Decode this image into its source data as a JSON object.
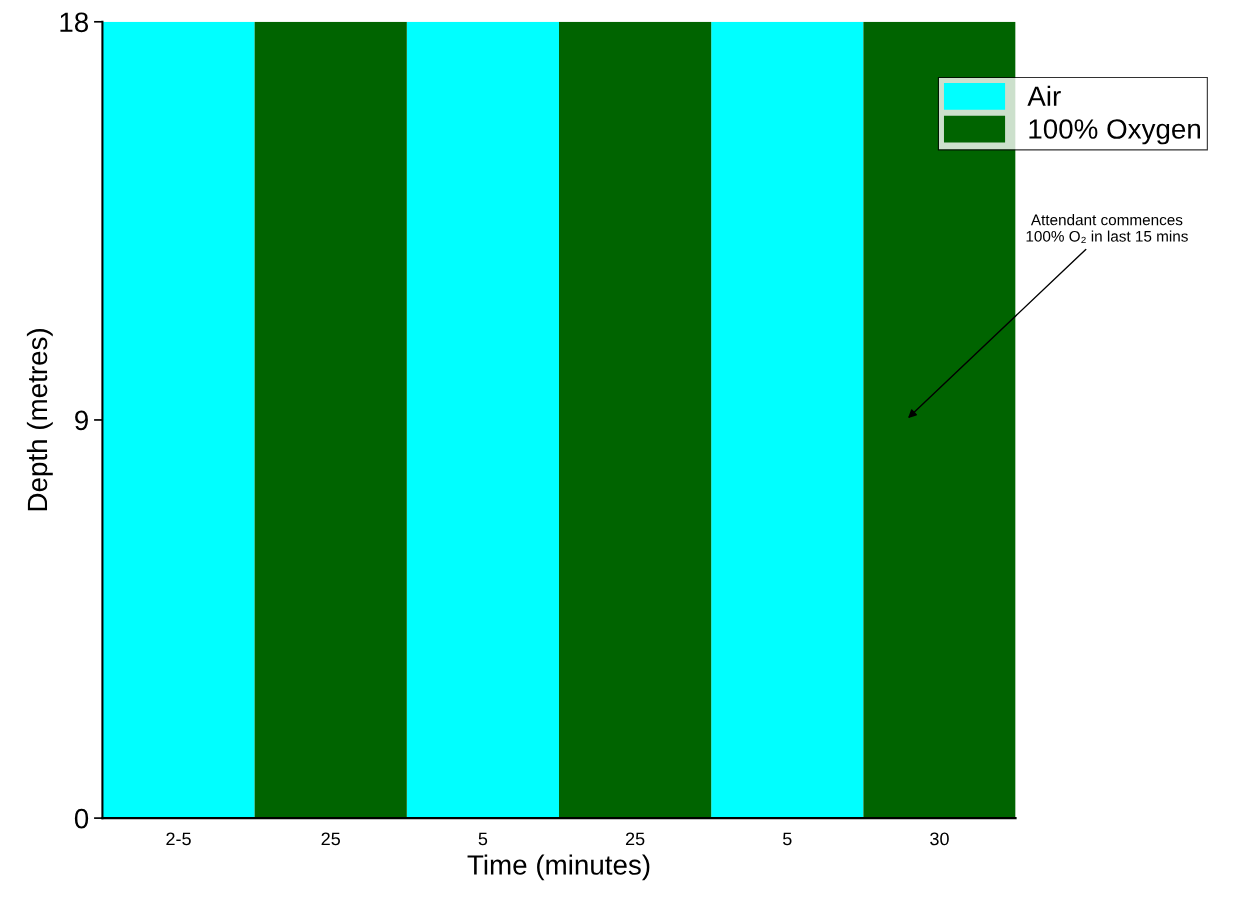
{
  "chart_data": {
    "type": "bar",
    "xlabel": "Time (minutes)",
    "ylabel": "Depth (metres)",
    "categories": [
      "2-5",
      "25",
      "5",
      "25",
      "5",
      "30"
    ],
    "series": [
      {
        "name": "Air",
        "color": "#00ffff",
        "values": [
          18,
          null,
          18,
          null,
          18,
          null
        ]
      },
      {
        "name": "100% Oxygen",
        "color": "#006400",
        "values": [
          null,
          18,
          null,
          18,
          null,
          18
        ]
      }
    ],
    "ylim": [
      0,
      18
    ],
    "yticks": [
      0,
      9,
      18
    ],
    "annotations": [
      "Attendant commences\n100% O₂ in last 15 mins"
    ],
    "legend": "top right",
    "grid": false
  }
}
